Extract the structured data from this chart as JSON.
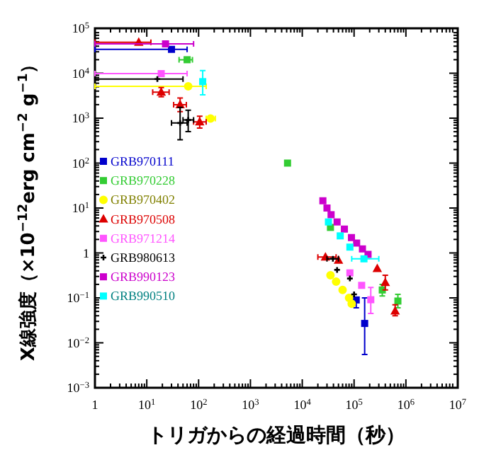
{
  "chart_data": {
    "type": "scatter",
    "log": "xy",
    "xlabel": "トリガからの経過時間（秒）",
    "ylabel": "X線強度（×10$^{−12}$erg cm$^{−2}$ g$^{−1}$）",
    "xlim": [
      1,
      10000000
    ],
    "ylim": [
      0.001,
      100000
    ],
    "xticks": [
      1,
      {
        "value": 10,
        "label": "10$^{1}$"
      },
      {
        "value": 100,
        "label": "10$^{2}$"
      },
      {
        "value": 1000,
        "label": "10$^{3}$"
      },
      {
        "value": 10000,
        "label": "10$^{4}$"
      },
      {
        "value": 100000,
        "label": "10$^{5}$"
      },
      {
        "value": 1000000,
        "label": "10$^{6}$"
      },
      {
        "value": 10000000,
        "label": "10$^{7}$"
      }
    ],
    "yticks": [
      {
        "value": 0.001,
        "label": "10$^{−3}$"
      },
      {
        "value": 0.01,
        "label": "10$^{−2}$"
      },
      {
        "value": 0.1,
        "label": "10$^{−1}$"
      },
      1,
      {
        "value": 10,
        "label": "10$^{1}$"
      },
      {
        "value": 100,
        "label": "10$^{2}$"
      },
      {
        "value": 1000,
        "label": "10$^{3}$"
      },
      {
        "value": 10000,
        "label": "10$^{4}$"
      },
      {
        "value": 100000,
        "label": "10$^{5}$"
      }
    ],
    "grid": false,
    "legend": "left",
    "series": [
      {
        "name": "GRB970111",
        "color": "#0000cc",
        "marker": "square",
        "x": [
          30,
          110000,
          160000
        ],
        "values": [
          34000,
          0.09,
          0.027
        ],
        "xerrors": [
          [
            1,
            60
          ],
          null,
          null
        ],
        "errors": [
          null,
          [
            0.06,
            0.1
          ],
          [
            0.0055,
            0.1
          ]
        ]
      },
      {
        "name": "GRB970228",
        "color": "#33cc33",
        "marker": "square",
        "x": [
          60,
          5200,
          35000,
          350000,
          700000
        ],
        "values": [
          20000,
          100,
          3.7,
          0.15,
          0.085
        ],
        "xerrors": [
          [
            42,
            76
          ],
          null,
          null,
          null,
          null
        ],
        "errors": [
          null,
          null,
          null,
          [
            0.11,
            0.2
          ],
          [
            0.06,
            0.12
          ]
        ]
      },
      {
        "name": "GRB970402",
        "color": "#ffff00",
        "marker": "circle",
        "x": [
          63,
          170,
          35000,
          45000,
          60000,
          80000,
          90000
        ],
        "values": [
          5100,
          980,
          0.32,
          0.23,
          0.15,
          0.1,
          0.074
        ],
        "xerrors": [
          [
            1,
            140
          ],
          [
            140,
            210
          ],
          null,
          null,
          null,
          null,
          null
        ]
      },
      {
        "name": "GRB970508",
        "color": "#dd0000",
        "marker": "triangle",
        "x": [
          7,
          19,
          44,
          105,
          28000,
          50000,
          280000,
          400000,
          620000
        ],
        "values": [
          49000,
          3800,
          2000,
          830,
          0.81,
          0.69,
          0.45,
          0.22,
          0.051
        ],
        "xerrors": [
          [
            1,
            12
          ],
          [
            13,
            27
          ],
          [
            33,
            58
          ],
          [
            80,
            140
          ],
          [
            20000,
            45000
          ],
          null,
          null,
          null,
          null
        ],
        "errors": [
          null,
          [
            3000,
            4800
          ],
          [
            1400,
            2800
          ],
          [
            600,
            1100
          ],
          null,
          null,
          null,
          [
            0.15,
            0.32
          ],
          [
            0.04,
            0.07
          ]
        ]
      },
      {
        "name": "GRB971214",
        "color": "#ff55ff",
        "marker": "square",
        "x": [
          19,
          83000,
          140000,
          210000
        ],
        "values": [
          9800,
          0.36,
          0.19,
          0.091
        ],
        "xerrors": [
          [
            1,
            60
          ],
          null,
          null,
          null
        ],
        "errors": [
          null,
          null,
          null,
          [
            0.045,
            0.17
          ]
        ]
      },
      {
        "name": "GRB980613",
        "color": "#000000",
        "marker": "cross",
        "x": [
          16,
          44,
          63,
          39000,
          47000,
          83000,
          100000
        ],
        "values": [
          7400,
          780,
          910,
          0.74,
          0.42,
          0.27,
          0.12
        ],
        "xerrors": [
          [
            1,
            50
          ],
          [
            30,
            60
          ],
          [
            50,
            80
          ],
          [
            30000,
            50000
          ],
          null,
          null,
          null
        ],
        "errors": [
          null,
          [
            330,
            1740
          ],
          [
            500,
            1500
          ],
          null,
          null,
          null,
          null
        ]
      },
      {
        "name": "GRB990123",
        "color": "#cc00cc",
        "marker": "square",
        "x": [
          23,
          25000,
          30000,
          36000,
          47000,
          65000,
          89000,
          112000,
          145000,
          186000
        ],
        "values": [
          45000,
          14.5,
          10,
          7.1,
          4.9,
          3.4,
          2.2,
          1.66,
          1.23,
          0.93
        ],
        "xerrors": [
          [
            1,
            80
          ],
          null,
          null,
          null,
          null,
          null,
          null,
          null,
          null,
          null
        ]
      },
      {
        "name": "GRB990510",
        "color": "#00ffff",
        "marker": "square",
        "x": [
          120,
          32000,
          54000,
          83000,
          155000
        ],
        "values": [
          6500,
          4.9,
          2.4,
          1.35,
          0.74
        ],
        "xerrors": [
          null,
          null,
          null,
          null,
          [
            90000,
            300000
          ]
        ],
        "errors": [
          [
            3300,
            11500
          ],
          null,
          null,
          null,
          null
        ]
      }
    ]
  }
}
